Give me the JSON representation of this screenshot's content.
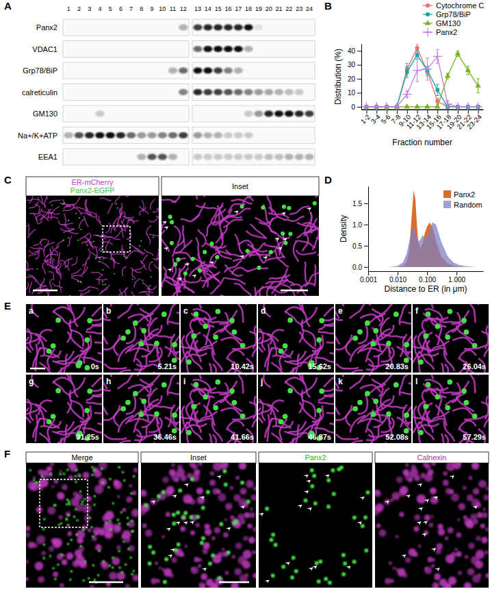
{
  "figure": {
    "panel_labels": [
      "A",
      "B",
      "C",
      "D",
      "E",
      "F"
    ]
  },
  "blot": {
    "lanes": [
      1,
      2,
      3,
      4,
      5,
      6,
      7,
      8,
      9,
      10,
      11,
      12,
      13,
      14,
      15,
      16,
      17,
      18,
      19,
      20,
      21,
      22,
      23,
      24
    ],
    "rows": [
      {
        "label": "Panx2",
        "bands": [
          0,
          0,
          0,
          0,
          0,
          0,
          0,
          0,
          0,
          0,
          0,
          0.3,
          0.8,
          0.9,
          0.9,
          0.9,
          0.9,
          1.0,
          0.1,
          0,
          0,
          0,
          0,
          0
        ]
      },
      {
        "label": "VDAC1",
        "bands": [
          0,
          0,
          0,
          0,
          0,
          0,
          0,
          0,
          0,
          0,
          0,
          0,
          0.6,
          1.0,
          1.0,
          1.0,
          1.0,
          0.3,
          0,
          0,
          0,
          0,
          0,
          0
        ]
      },
      {
        "label": "Grp78/BiP",
        "bands": [
          0,
          0,
          0,
          0,
          0,
          0,
          0,
          0,
          0,
          0,
          0.3,
          0.6,
          1.0,
          1.0,
          0.8,
          0.5,
          0.3,
          0,
          0,
          0,
          0,
          0,
          0,
          0
        ]
      },
      {
        "label": "calreticulin",
        "bands": [
          0,
          0,
          0,
          0,
          0,
          0,
          0,
          0,
          0,
          0,
          0,
          0.5,
          0.9,
          0.8,
          0.8,
          0.7,
          0.6,
          0.5,
          0.4,
          0.35,
          0.3,
          0.25,
          0.2,
          0
        ]
      },
      {
        "label": "GM130",
        "bands": [
          0,
          0,
          0,
          0.2,
          0,
          0,
          0,
          0,
          0,
          0,
          0,
          0,
          0,
          0,
          0,
          0,
          0,
          0.2,
          0.4,
          0.9,
          1.0,
          1.0,
          0.9,
          0.8
        ]
      },
      {
        "label": "Na+/K+ATP",
        "bands": [
          0.3,
          0.7,
          0.9,
          1.0,
          1.0,
          0.9,
          0.6,
          0.4,
          0.4,
          0.5,
          0.6,
          0.8,
          0.4,
          0.3,
          0.3,
          0.2,
          0.2,
          0.2,
          0,
          0,
          0,
          0,
          0,
          0
        ]
      },
      {
        "label": "EEA1",
        "bands": [
          0,
          0,
          0,
          0,
          0,
          0,
          0,
          0.3,
          0.7,
          0.7,
          0.3,
          0,
          0.2,
          0.2,
          0.2,
          0.2,
          0.2,
          0.2,
          0.2,
          0.25,
          0.25,
          0.3,
          0.3,
          0.3
        ]
      }
    ]
  },
  "chart_data": [
    {
      "type": "line",
      "categories": [
        "1-2",
        "3-4",
        "5-6",
        "7-8",
        "9-10",
        "11-12",
        "13-14",
        "15-16",
        "17-18",
        "19-20",
        "21-22",
        "23-24"
      ],
      "x_label": "Fraction number",
      "y_label": "Distribution (%)",
      "ylim": [
        -2,
        45
      ],
      "yticks": [
        0,
        10,
        20,
        30,
        40
      ],
      "legend": "top-right",
      "series": [
        {
          "name": "Cytochrome C",
          "color": "#f07070",
          "marker": "circle",
          "values": [
            0,
            0,
            0,
            0,
            27,
            42,
            25,
            4,
            0,
            0,
            0,
            0
          ],
          "errors": [
            0,
            0,
            0,
            0,
            4,
            3,
            3,
            2,
            0,
            0,
            0,
            0
          ]
        },
        {
          "name": "Grp78/BiP",
          "color": "#17a5a5",
          "marker": "square",
          "values": [
            0,
            0,
            0,
            0,
            25,
            37,
            26,
            12,
            0,
            0,
            0,
            0
          ],
          "errors": [
            0,
            0,
            0,
            0,
            4,
            3,
            3,
            4,
            0,
            0,
            0,
            0
          ]
        },
        {
          "name": "GM130",
          "color": "#74b31c",
          "marker": "triangle",
          "values": [
            0,
            0,
            0,
            0,
            0,
            0,
            0,
            0,
            22,
            38,
            26,
            15
          ],
          "errors": [
            0,
            0,
            0,
            0,
            0,
            0,
            0,
            0,
            2,
            2,
            3,
            5
          ]
        },
        {
          "name": "Panx2",
          "color": "#c77ce6",
          "marker": "plus",
          "values": [
            0,
            0,
            0,
            0,
            9,
            26,
            27,
            36,
            2,
            0,
            0,
            0
          ],
          "errors": [
            0,
            0,
            0,
            0,
            2,
            8,
            8,
            5,
            2,
            0,
            0,
            0
          ]
        }
      ]
    },
    {
      "type": "area",
      "x_label": "Distance to ER (in μm)",
      "y_label": "Density",
      "log": "x",
      "xlim": [
        0.001,
        8
      ],
      "xticks": [
        0.001,
        {
          "value": 0.01,
          "label": "0.010"
        },
        {
          "value": 0.1,
          "label": "0.100"
        },
        {
          "value": 1,
          "label": "1.000"
        }
      ],
      "ylim": [
        -0.1,
        1.9
      ],
      "yticks": [
        {
          "value": 0,
          "label": "0.0"
        },
        {
          "value": 0.5,
          "label": "0.5"
        },
        {
          "value": 1,
          "label": "1.0"
        },
        {
          "value": 1.5,
          "label": "1.5"
        }
      ],
      "legend": "top-right",
      "series": [
        {
          "name": "Panx2",
          "color": "#d9661f",
          "x": [
            0.01,
            0.015,
            0.02,
            0.025,
            0.03,
            0.035,
            0.04,
            0.045,
            0.05,
            0.06,
            0.07,
            0.08,
            0.1,
            0.12,
            0.15,
            0.2,
            0.3,
            0.5,
            0.8,
            1.2,
            2
          ],
          "values": [
            0,
            0.02,
            0.1,
            0.4,
            1.2,
            1.8,
            1.6,
            1.0,
            0.6,
            0.45,
            0.55,
            0.75,
            0.95,
            1.05,
            0.95,
            0.6,
            0.25,
            0.08,
            0.02,
            0.01,
            0
          ]
        },
        {
          "name": "Random",
          "color": "#8080c4",
          "x": [
            0.005,
            0.01,
            0.015,
            0.02,
            0.025,
            0.03,
            0.035,
            0.04,
            0.05,
            0.06,
            0.07,
            0.08,
            0.1,
            0.12,
            0.15,
            0.2,
            0.3,
            0.5,
            0.8,
            1.2,
            2,
            4,
            6
          ],
          "values": [
            0,
            0.03,
            0.1,
            0.3,
            0.6,
            0.85,
            0.95,
            0.85,
            0.6,
            0.65,
            0.75,
            0.7,
            0.7,
            0.85,
            1.05,
            1.0,
            0.6,
            0.25,
            0.1,
            0.05,
            0.02,
            0.005,
            0
          ]
        }
      ]
    }
  ],
  "image_c": {
    "channels": [
      {
        "label": "ER-mCherry",
        "color": "#c83cc8"
      },
      {
        "label": "Panx2-EGFP",
        "color": "#3cc83c"
      }
    ],
    "inset_title": "Inset"
  },
  "image_e": {
    "frames": [
      {
        "letter": "a",
        "time": "0s"
      },
      {
        "letter": "b",
        "time": "5.21s"
      },
      {
        "letter": "c",
        "time": "10.42s"
      },
      {
        "letter": "d",
        "time": "15.62s"
      },
      {
        "letter": "e",
        "time": "20.83s"
      },
      {
        "letter": "f",
        "time": "26.04s"
      },
      {
        "letter": "g",
        "time": "31.25s"
      },
      {
        "letter": "h",
        "time": "36.46s"
      },
      {
        "letter": "i",
        "time": "41.66s"
      },
      {
        "letter": "j",
        "time": "46.87s"
      },
      {
        "letter": "k",
        "time": "52.08s"
      },
      {
        "letter": "l",
        "time": "57.29s"
      }
    ]
  },
  "image_f": {
    "titles": [
      {
        "text": "Merge",
        "color": "#000000"
      },
      {
        "text": "Inset",
        "color": "#000000"
      },
      {
        "text": "Panx2",
        "color": "#22b822"
      },
      {
        "text": "Calnexin",
        "color": "#b030b0"
      }
    ]
  }
}
